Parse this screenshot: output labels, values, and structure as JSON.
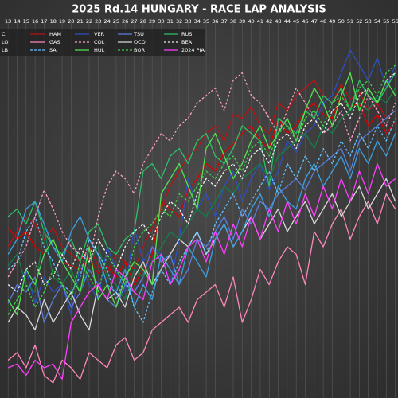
{
  "chart_data": {
    "type": "line",
    "title": "2025 Rd.14 HUNGARY - RACE LAP ANALYSIS",
    "x": [
      13,
      14,
      15,
      16,
      17,
      18,
      19,
      20,
      21,
      22,
      23,
      24,
      25,
      26,
      27,
      28,
      29,
      30,
      31,
      32,
      33,
      34,
      35,
      36,
      37,
      38,
      39,
      40,
      41,
      42,
      43,
      44,
      45,
      46,
      47,
      48,
      49,
      50,
      51,
      52,
      53,
      54,
      55,
      56
    ],
    "xticks": [
      13,
      14,
      15,
      16,
      17,
      18,
      19,
      20,
      21,
      22,
      23,
      24,
      25,
      26,
      27,
      28,
      29,
      30,
      31,
      32,
      33,
      34,
      35,
      36,
      37,
      38,
      39,
      40,
      41,
      42,
      43,
      44,
      45,
      46,
      47,
      48,
      49,
      50,
      51,
      52,
      53,
      54,
      55,
      56
    ],
    "xlim": [
      12.1,
      56.3
    ],
    "ylim": [
      0,
      100
    ],
    "grid": true,
    "legend": "top-left",
    "series": [
      {
        "name": "C",
        "color": "#dc0000",
        "dashed": false,
        "values": [
          45,
          42,
          44,
          40,
          38,
          42,
          36,
          35,
          34,
          37,
          33,
          35,
          32,
          36,
          30,
          34,
          38,
          52,
          50,
          48,
          55,
          58,
          62,
          60,
          65,
          67,
          70,
          72,
          68,
          66,
          74,
          70,
          72,
          76,
          78,
          75,
          74,
          80,
          77,
          78,
          72,
          75,
          70,
          73
        ]
      },
      {
        "name": "HAM",
        "color": "#b81414",
        "dashed": false,
        "values": [
          40,
          44,
          48,
          46,
          42,
          45,
          40,
          38,
          36,
          40,
          35,
          33,
          38,
          36,
          34,
          40,
          45,
          50,
          56,
          60,
          64,
          66,
          70,
          72,
          68,
          75,
          74,
          77,
          72,
          70,
          78,
          76,
          80,
          82,
          84,
          80,
          78,
          83,
          79,
          81,
          76,
          78,
          74,
          76
        ]
      },
      {
        "name": "VER",
        "color": "#2d4fbf",
        "dashed": false,
        "values": [
          30,
          28,
          34,
          25,
          32,
          28,
          30,
          22,
          35,
          30,
          26,
          40,
          34,
          28,
          45,
          36,
          40,
          38,
          30,
          42,
          58,
          50,
          54,
          48,
          56,
          60,
          52,
          58,
          62,
          55,
          60,
          68,
          65,
          70,
          72,
          78,
          80,
          86,
          92,
          88,
          84,
          90,
          82,
          88
        ]
      },
      {
        "name": "TSU",
        "color": "#5b7fe0",
        "dashed": false,
        "values": [
          25,
          30,
          28,
          32,
          20,
          26,
          30,
          24,
          28,
          34,
          30,
          26,
          24,
          30,
          28,
          32,
          40,
          36,
          38,
          30,
          34,
          42,
          40,
          44,
          48,
          42,
          50,
          46,
          52,
          50,
          54,
          56,
          58,
          55,
          60,
          62,
          64,
          66,
          60,
          68,
          70,
          72,
          74,
          76
        ]
      },
      {
        "name": "RUS",
        "color": "#2fbf6a",
        "dashed": false,
        "values": [
          48,
          50,
          46,
          52,
          44,
          40,
          38,
          42,
          36,
          44,
          46,
          40,
          38,
          42,
          44,
          60,
          62,
          58,
          64,
          66,
          62,
          68,
          70,
          64,
          62,
          66,
          72,
          70,
          68,
          56,
          74,
          72,
          70,
          76,
          74,
          80,
          78,
          82,
          76,
          84,
          80,
          78,
          82,
          86
        ]
      },
      {
        "name": "LO",
        "color": "#12804a",
        "dashed": false,
        "values": [
          35,
          38,
          30,
          28,
          45,
          32,
          30,
          34,
          28,
          36,
          40,
          32,
          30,
          26,
          34,
          32,
          36,
          40,
          44,
          42,
          46,
          50,
          48,
          52,
          56,
          54,
          58,
          60,
          62,
          58,
          64,
          66,
          68,
          70,
          66,
          72,
          70,
          74,
          76,
          78,
          76,
          80,
          78,
          82
        ]
      },
      {
        "name": "GAS",
        "color": "#ff87bc",
        "dashed": false,
        "values": [
          10,
          12,
          8,
          14,
          6,
          4,
          10,
          8,
          5,
          12,
          10,
          8,
          14,
          16,
          10,
          12,
          18,
          20,
          22,
          24,
          20,
          26,
          28,
          30,
          24,
          32,
          20,
          26,
          34,
          30,
          36,
          40,
          38,
          30,
          44,
          40,
          46,
          50,
          42,
          48,
          52,
          46,
          54,
          50
        ]
      },
      {
        "name": "COL",
        "color": "#ff9fc8",
        "dashed": true,
        "values": [
          32,
          36,
          40,
          48,
          55,
          50,
          44,
          40,
          38,
          36,
          48,
          56,
          60,
          58,
          54,
          62,
          66,
          70,
          68,
          72,
          74,
          78,
          80,
          82,
          76,
          84,
          86,
          80,
          78,
          74,
          70,
          76,
          82,
          78,
          74,
          70,
          72,
          76,
          68,
          74,
          80,
          76,
          72,
          78
        ]
      },
      {
        "name": "OCO",
        "color": "#d8d8d8",
        "dashed": false,
        "values": [
          20,
          24,
          22,
          18,
          26,
          20,
          24,
          28,
          22,
          18,
          30,
          26,
          28,
          24,
          32,
          36,
          30,
          34,
          38,
          42,
          40,
          44,
          38,
          42,
          46,
          40,
          44,
          48,
          42,
          46,
          50,
          44,
          48,
          52,
          46,
          50,
          54,
          48,
          52,
          56,
          50,
          54,
          58,
          52
        ]
      },
      {
        "name": "BEA",
        "color": "#f0f0f0",
        "dashed": true,
        "values": [
          30,
          28,
          34,
          36,
          30,
          32,
          38,
          34,
          40,
          36,
          42,
          38,
          34,
          40,
          44,
          46,
          42,
          48,
          52,
          50,
          46,
          54,
          58,
          56,
          60,
          62,
          58,
          64,
          66,
          62,
          68,
          70,
          66,
          72,
          74,
          70,
          76,
          78,
          74,
          80,
          82,
          78,
          84,
          86
        ]
      },
      {
        "name": "LB",
        "color": "#3ba0e0",
        "dashed": false,
        "values": [
          38,
          42,
          50,
          52,
          46,
          40,
          36,
          44,
          48,
          42,
          38,
          30,
          28,
          34,
          24,
          30,
          26,
          38,
          34,
          30,
          40,
          36,
          32,
          42,
          46,
          40,
          44,
          50,
          54,
          48,
          56,
          52,
          50,
          58,
          62,
          56,
          60,
          64,
          58,
          66,
          62,
          68,
          64,
          70
        ]
      },
      {
        "name": "SAI",
        "color": "#64c4ff",
        "dashed": true,
        "values": [
          34,
          36,
          44,
          48,
          40,
          36,
          30,
          28,
          32,
          42,
          38,
          34,
          26,
          32,
          24,
          20,
          28,
          34,
          30,
          36,
          40,
          44,
          38,
          46,
          50,
          54,
          48,
          52,
          56,
          60,
          54,
          62,
          58,
          64,
          60,
          66,
          62,
          68,
          64,
          70,
          66,
          72,
          68,
          74
        ]
      },
      {
        "name": "HUL",
        "color": "#52e252",
        "dashed": false,
        "values": [
          26,
          22,
          34,
          30,
          38,
          42,
          36,
          32,
          28,
          40,
          26,
          30,
          24,
          32,
          36,
          34,
          30,
          54,
          58,
          62,
          56,
          50,
          66,
          70,
          64,
          58,
          62,
          68,
          72,
          66,
          70,
          74,
          68,
          76,
          82,
          78,
          72,
          80,
          86,
          76,
          82,
          78,
          84,
          80
        ]
      },
      {
        "name": "BOR",
        "color": "#3fd04a",
        "dashed": true,
        "values": [
          22,
          26,
          30,
          24,
          28,
          34,
          30,
          26,
          36,
          32,
          28,
          38,
          34,
          30,
          40,
          44,
          46,
          50,
          48,
          54,
          52,
          56,
          60,
          58,
          62,
          64,
          60,
          66,
          68,
          64,
          70,
          72,
          68,
          74,
          76,
          72,
          78,
          80,
          76,
          82,
          84,
          80,
          86,
          88
        ]
      },
      {
        "name": "2024 PIA",
        "color": "#ff40ff",
        "dashed": false,
        "values": [
          8,
          9,
          6,
          10,
          8,
          9,
          5,
          20,
          24,
          28,
          30,
          26,
          34,
          32,
          28,
          26,
          36,
          38,
          30,
          34,
          40,
          42,
          36,
          44,
          38,
          46,
          40,
          48,
          42,
          50,
          44,
          52,
          46,
          54,
          48,
          56,
          50,
          58,
          52,
          60,
          54,
          62,
          56,
          58
        ]
      }
    ]
  }
}
